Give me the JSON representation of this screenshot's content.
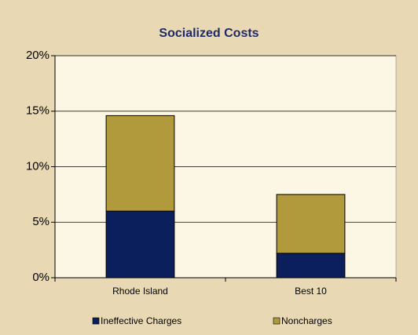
{
  "chart_data": {
    "type": "stacked-bar",
    "title": "Socialized Costs",
    "categories": [
      "Rhode Island",
      "Best 10"
    ],
    "series": [
      {
        "name": "Ineffective Charges",
        "color": "#0b1f5c",
        "values": [
          6.0,
          2.2
        ]
      },
      {
        "name": "Noncharges",
        "color": "#b09a3c",
        "values": [
          8.6,
          5.3
        ]
      }
    ],
    "ylim": [
      0,
      20
    ],
    "yticks": [
      {
        "value": 0,
        "label": "0%"
      },
      {
        "value": 5,
        "label": "5%"
      },
      {
        "value": 10,
        "label": "10%"
      },
      {
        "value": 15,
        "label": "15%"
      },
      {
        "value": 20,
        "label": "20%"
      }
    ],
    "grid": true
  }
}
